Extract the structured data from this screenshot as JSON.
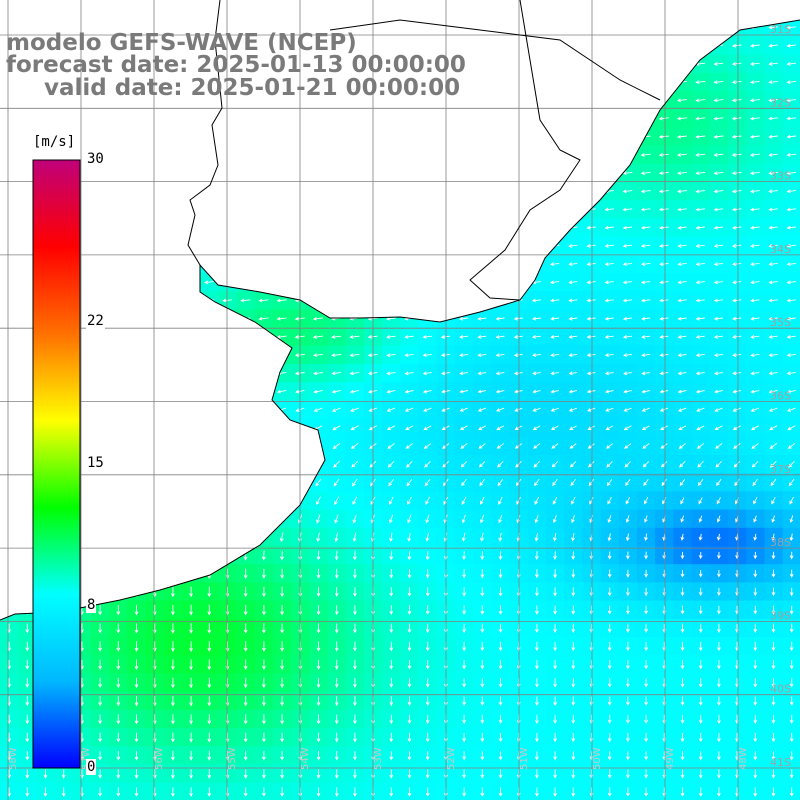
{
  "title": {
    "line1": "modelo GEFS-WAVE (NCEP)",
    "line2": "forecast date: 2025-01-13 00:00:00",
    "line3": "valid date: 2025-01-21 00:00:00"
  },
  "colorbar": {
    "unit": "[m/s]",
    "ticks": [
      {
        "value": 30,
        "label": "30"
      },
      {
        "value": 22,
        "label": "22"
      },
      {
        "value": 15,
        "label": "15"
      },
      {
        "value": 8,
        "label": "8"
      },
      {
        "value": 0,
        "label": "0"
      }
    ],
    "vmin": 0,
    "vmax": 30,
    "colors": [
      "#0000ff",
      "#00b8ff",
      "#00ffff",
      "#00ff00",
      "#ffff00",
      "#ff7000",
      "#ff0000",
      "#c0007a"
    ]
  },
  "map": {
    "variable": "wind speed and direction",
    "lat_labels": [
      "31S",
      "32S",
      "33S",
      "34S",
      "35S",
      "36S",
      "37S",
      "38S",
      "39S",
      "40S",
      "41S"
    ],
    "lon_labels": [
      "58W",
      "57W",
      "56W",
      "55W",
      "54W",
      "53W",
      "52W",
      "51W",
      "50W",
      "49W",
      "48W"
    ],
    "land_color": "#ffffff",
    "grid_color": "#808080",
    "coast_color": "#000000",
    "vector_color": "#ffffff"
  }
}
